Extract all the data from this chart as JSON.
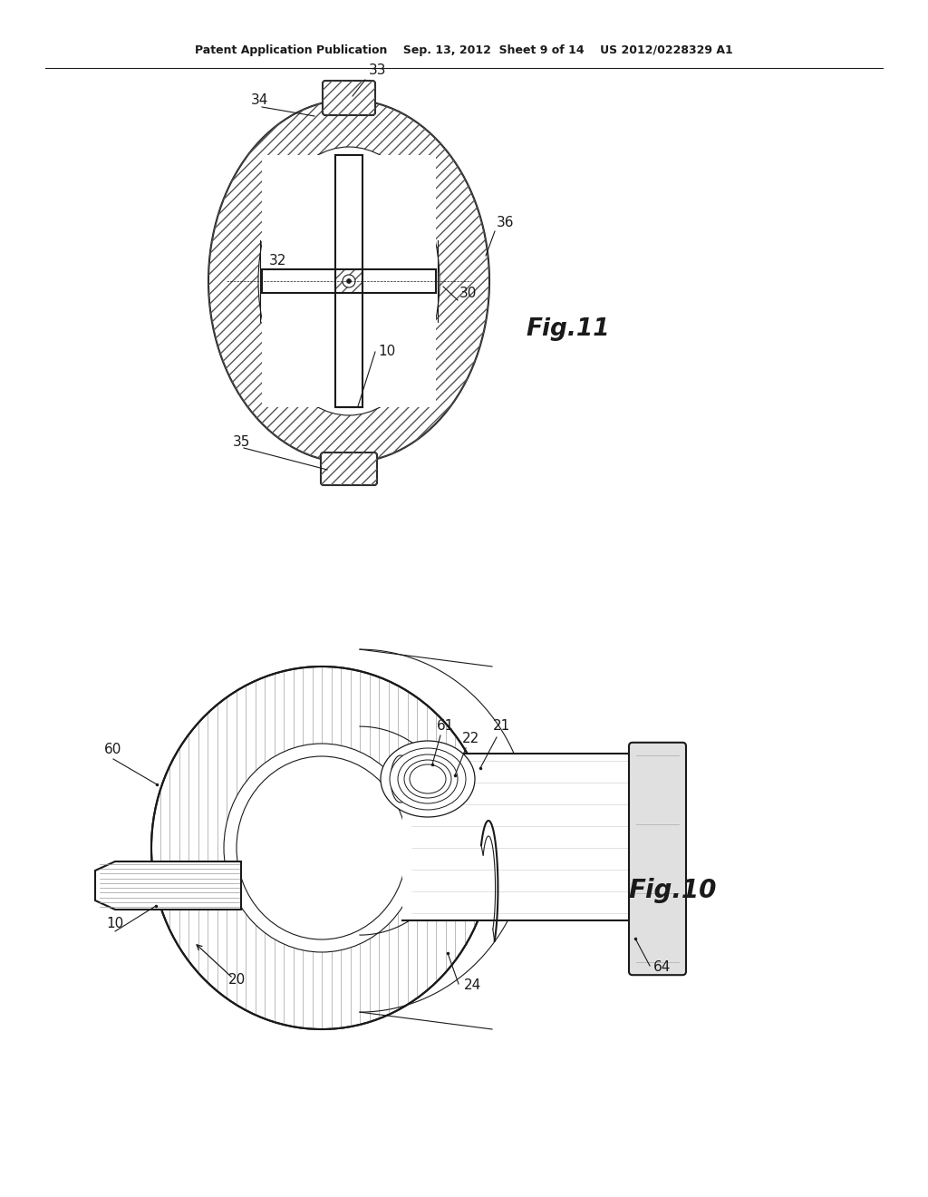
{
  "bg_color": "#ffffff",
  "line_color": "#1a1a1a",
  "header_text": "Patent Application Publication    Sep. 13, 2012  Sheet 9 of 14    US 2012/0228329 A1",
  "fig11_label": "Fig.11",
  "fig10_label": "Fig.10"
}
